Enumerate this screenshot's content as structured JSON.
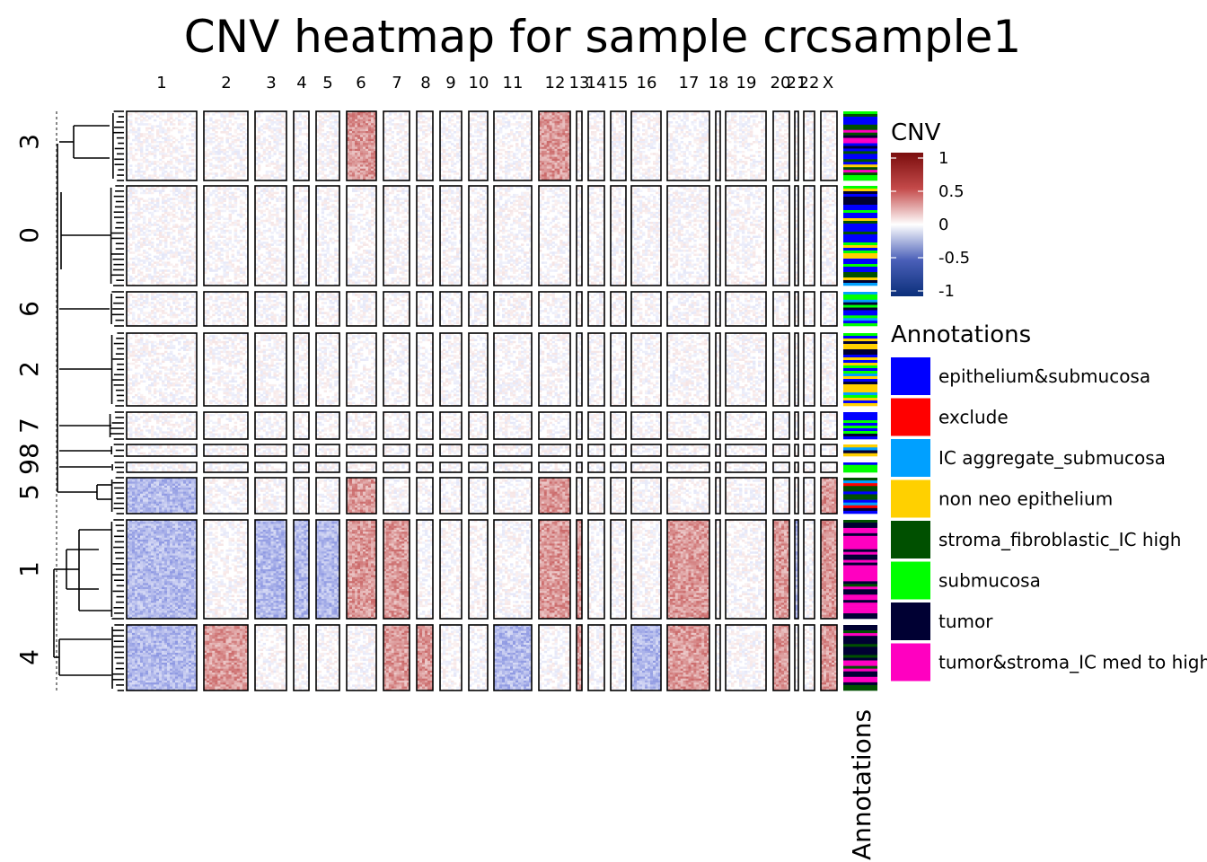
{
  "chart_data": {
    "type": "heatmap",
    "title": "CNV heatmap for sample crcsample1",
    "columns": [
      "1",
      "2",
      "3",
      "4",
      "5",
      "6",
      "7",
      "8",
      "9",
      "10",
      "11",
      "12",
      "13",
      "14",
      "15",
      "16",
      "17",
      "18",
      "19",
      "20",
      "21",
      "22",
      "X"
    ],
    "row_clusters": [
      "3",
      "0",
      "6",
      "2",
      "7",
      "8",
      "9",
      "5",
      "1",
      "4"
    ],
    "color_scale": {
      "title": "CNV",
      "ticks": [
        "1",
        "0.5",
        "0",
        "-0.5",
        "-1"
      ],
      "range": [
        -1,
        1
      ],
      "low_color": "#0b2f7a",
      "mid_color": "#ffffff",
      "high_color": "#7a0d0d"
    },
    "annotation_track": {
      "label": "Annotations",
      "legend_title": "Annotations",
      "categories": [
        {
          "name": "epithelium&submucosa",
          "color": "#0000ff"
        },
        {
          "name": "exclude",
          "color": "#ff0000"
        },
        {
          "name": "IC aggregate_submucosa",
          "color": "#00a0ff"
        },
        {
          "name": "non neo epithelium",
          "color": "#ffd000"
        },
        {
          "name": "stroma_fibroblastic_IC high",
          "color": "#005000"
        },
        {
          "name": "submucosa",
          "color": "#00ff00"
        },
        {
          "name": "tumor",
          "color": "#000033"
        },
        {
          "name": "tumor&stroma_IC med to high",
          "color": "#ff00c0"
        }
      ]
    },
    "cluster_profiles": {
      "3": {
        "gains": [
          "6",
          "12"
        ],
        "losses": []
      },
      "0": {
        "gains": [],
        "losses": []
      },
      "6": {
        "gains": [],
        "losses": []
      },
      "2": {
        "gains": [],
        "losses": []
      },
      "7": {
        "gains": [],
        "losses": []
      },
      "8": {
        "gains": [],
        "losses": []
      },
      "9": {
        "gains": [],
        "losses": []
      },
      "5": {
        "gains": [
          "6",
          "12",
          "X"
        ],
        "losses": [
          "1"
        ]
      },
      "1": {
        "gains": [
          "6",
          "7",
          "12",
          "13",
          "17",
          "20",
          "X"
        ],
        "losses": [
          "1",
          "3",
          "4",
          "5",
          "21"
        ]
      },
      "4": {
        "gains": [
          "2",
          "7",
          "8",
          "13",
          "17",
          "20",
          "X"
        ],
        "losses": [
          "1",
          "11",
          "16"
        ]
      }
    }
  }
}
